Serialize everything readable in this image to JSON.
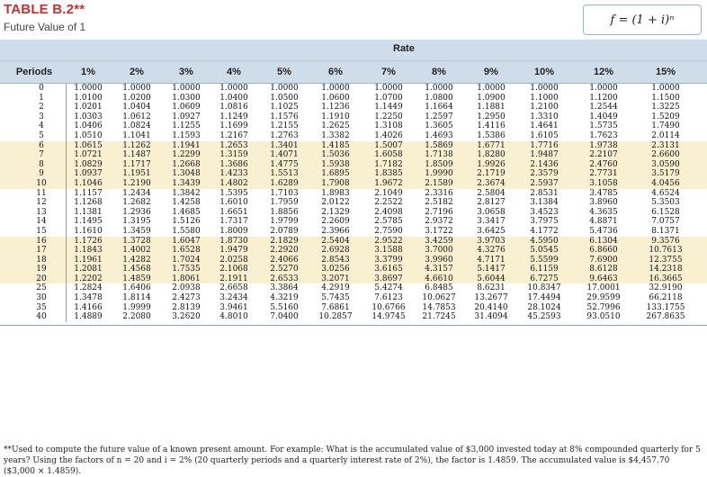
{
  "title": "TABLE B.2**",
  "subtitle": "Future Value of 1",
  "formula": "f = (1 + i)ⁿ",
  "rate_label": "Rate",
  "periods_label": "Periods",
  "columns": [
    "1%",
    "2%",
    "3%",
    "4%",
    "5%",
    "6%",
    "7%",
    "8%",
    "9%",
    "10%",
    "12%",
    "15%"
  ],
  "rows": [
    {
      "period": "0",
      "values": [
        "1.0000",
        "1.0000",
        "1.0000",
        "1.0000",
        "1.0000",
        "1.0000",
        "1.0000",
        "1.0000",
        "1.0000",
        "1.0000",
        "1.0000",
        "1.0000"
      ]
    },
    {
      "period": "1",
      "values": [
        "1.0100",
        "1.0200",
        "1.0300",
        "1.0400",
        "1.0500",
        "1.0600",
        "1.0700",
        "1.0800",
        "1.0900",
        "1.1000",
        "1.1200",
        "1.1500"
      ]
    },
    {
      "period": "2",
      "values": [
        "1.0201",
        "1.0404",
        "1.0609",
        "1.0816",
        "1.1025",
        "1.1236",
        "1.1449",
        "1.1664",
        "1.1881",
        "1.2100",
        "1.2544",
        "1.3225"
      ]
    },
    {
      "period": "3",
      "values": [
        "1.0303",
        "1.0612",
        "1.0927",
        "1.1249",
        "1.1576",
        "1.1910",
        "1.2250",
        "1.2597",
        "1.2950",
        "1.3310",
        "1.4049",
        "1.5209"
      ]
    },
    {
      "period": "4",
      "values": [
        "1.0406",
        "1.0824",
        "1.1255",
        "1.1699",
        "1.2155",
        "1.2625",
        "1.3108",
        "1.3605",
        "1.4116",
        "1.4641",
        "1.5735",
        "1.7490"
      ]
    },
    {
      "period": "5",
      "values": [
        "1.0510",
        "1.1041",
        "1.1593",
        "1.2167",
        "1.2763",
        "1.3382",
        "1.4026",
        "1.4693",
        "1.5386",
        "1.6105",
        "1.7623",
        "2.0114"
      ]
    },
    {
      "period": "6",
      "values": [
        "1.0615",
        "1.1262",
        "1.1941",
        "1.2653",
        "1.3401",
        "1.4185",
        "1.5007",
        "1.5869",
        "1.6771",
        "1.7716",
        "1.9738",
        "2.3131"
      ]
    },
    {
      "period": "7",
      "values": [
        "1.0721",
        "1.1487",
        "1.2299",
        "1.3159",
        "1.4071",
        "1.5036",
        "1.6058",
        "1.7138",
        "1.8280",
        "1.9487",
        "2.2107",
        "2.6600"
      ]
    },
    {
      "period": "8",
      "values": [
        "1.0829",
        "1.1717",
        "1.2668",
        "1.3686",
        "1.4775",
        "1.5938",
        "1.7182",
        "1.8509",
        "1.9926",
        "2.1436",
        "2.4760",
        "3.0590"
      ]
    },
    {
      "period": "9",
      "values": [
        "1.0937",
        "1.1951",
        "1.3048",
        "1.4233",
        "1.5513",
        "1.6895",
        "1.8385",
        "1.9990",
        "2.1719",
        "2.3579",
        "2.7731",
        "3.5179"
      ]
    },
    {
      "period": "10",
      "values": [
        "1.1046",
        "1.2190",
        "1.3439",
        "1.4802",
        "1.6289",
        "1.7908",
        "1.9672",
        "2.1589",
        "2.3674",
        "2.5937",
        "3.1058",
        "4.0456"
      ]
    },
    {
      "period": "11",
      "values": [
        "1.1157",
        "1.2434",
        "1.3842",
        "1.5395",
        "1.7103",
        "1.8983",
        "2.1049",
        "2.3316",
        "2.5804",
        "2.8531",
        "3.4785",
        "4.6524"
      ]
    },
    {
      "period": "12",
      "values": [
        "1.1268",
        "1.2682",
        "1.4258",
        "1.6010",
        "1.7959",
        "2.0122",
        "2.2522",
        "2.5182",
        "2.8127",
        "3.1384",
        "3.8960",
        "5.3503"
      ]
    },
    {
      "period": "13",
      "values": [
        "1.1381",
        "1.2936",
        "1.4685",
        "1.6651",
        "1.8856",
        "2.1329",
        "2.4098",
        "2.7196",
        "3.0658",
        "3.4523",
        "4.3635",
        "6.1528"
      ]
    },
    {
      "period": "14",
      "values": [
        "1.1495",
        "1.3195",
        "1.5126",
        "1.7317",
        "1.9799",
        "2.2609",
        "2.5785",
        "2.9372",
        "3.3417",
        "3.7975",
        "4.8871",
        "7.0757"
      ]
    },
    {
      "period": "15",
      "values": [
        "1.1610",
        "1.3459",
        "1.5580",
        "1.8009",
        "2.0789",
        "2.3966",
        "2.7590",
        "3.1722",
        "3.6425",
        "4.1772",
        "5.4736",
        "8.1371"
      ]
    },
    {
      "period": "16",
      "values": [
        "1.1726",
        "1.3728",
        "1.6047",
        "1.8730",
        "2.1829",
        "2.5404",
        "2.9522",
        "3.4259",
        "3.9703",
        "4.5950",
        "6.1304",
        "9.3576"
      ]
    },
    {
      "period": "17",
      "values": [
        "1.1843",
        "1.4002",
        "1.6528",
        "1.9479",
        "2.2920",
        "2.6928",
        "3.1588",
        "3.7000",
        "4.3276",
        "5.0545",
        "6.8660",
        "10.7613"
      ]
    },
    {
      "period": "18",
      "values": [
        "1.1961",
        "1.4282",
        "1.7024",
        "2.0258",
        "2.4066",
        "2.8543",
        "3.3799",
        "3.9960",
        "4.7171",
        "5.5599",
        "7.6900",
        "12.3755"
      ]
    },
    {
      "period": "19",
      "values": [
        "1.2081",
        "1.4568",
        "1.7535",
        "2.1068",
        "2.5270",
        "3.0256",
        "3.6165",
        "4.3157",
        "5.1417",
        "6.1159",
        "8.6128",
        "14.2318"
      ]
    },
    {
      "period": "20",
      "values": [
        "1.2202",
        "1.4859",
        "1.8061",
        "2.1911",
        "2.6533",
        "3.2071",
        "3.8697",
        "4.6610",
        "5.6044",
        "6.7275",
        "9.6463",
        "16.3665"
      ]
    },
    {
      "period": "25",
      "values": [
        "1.2824",
        "1.6406",
        "2.0938",
        "2.6658",
        "3.3864",
        "4.2919",
        "5.4274",
        "6.8485",
        "8.6231",
        "10.8347",
        "17.0001",
        "32.9190"
      ]
    },
    {
      "period": "30",
      "values": [
        "1.3478",
        "1.8114",
        "2.4273",
        "3.2434",
        "4.3219",
        "5.7435",
        "7.6123",
        "10.0627",
        "13.2677",
        "17.4494",
        "29.9599",
        "66.2118"
      ]
    },
    {
      "period": "35",
      "values": [
        "1.4166",
        "1.9999",
        "2.8139",
        "3.9461",
        "5.5160",
        "7.6861",
        "10.6766",
        "14.7853",
        "20.4140",
        "28.1024",
        "52.7996",
        "133.1755"
      ]
    },
    {
      "period": "40",
      "values": [
        "1.4889",
        "2.2080",
        "3.2620",
        "4.8010",
        "7.0400",
        "10.2857",
        "14.9745",
        "21.7245",
        "31.4094",
        "45.2593",
        "93.0510",
        "267.8635"
      ]
    }
  ],
  "footnote": "**Used to compute the future value of a known present amount. For example: What is the accumulated value of $3,000 invested today at 8% compounded quarterly for 5 years? Using the factors of n = 20 and i = 2% (20 quarterly periods and a quarterly interest rate of 2%), the factor is 1.4859. The accumulated value is $4,457.70 ($3,000 × 1.4859)."
}
